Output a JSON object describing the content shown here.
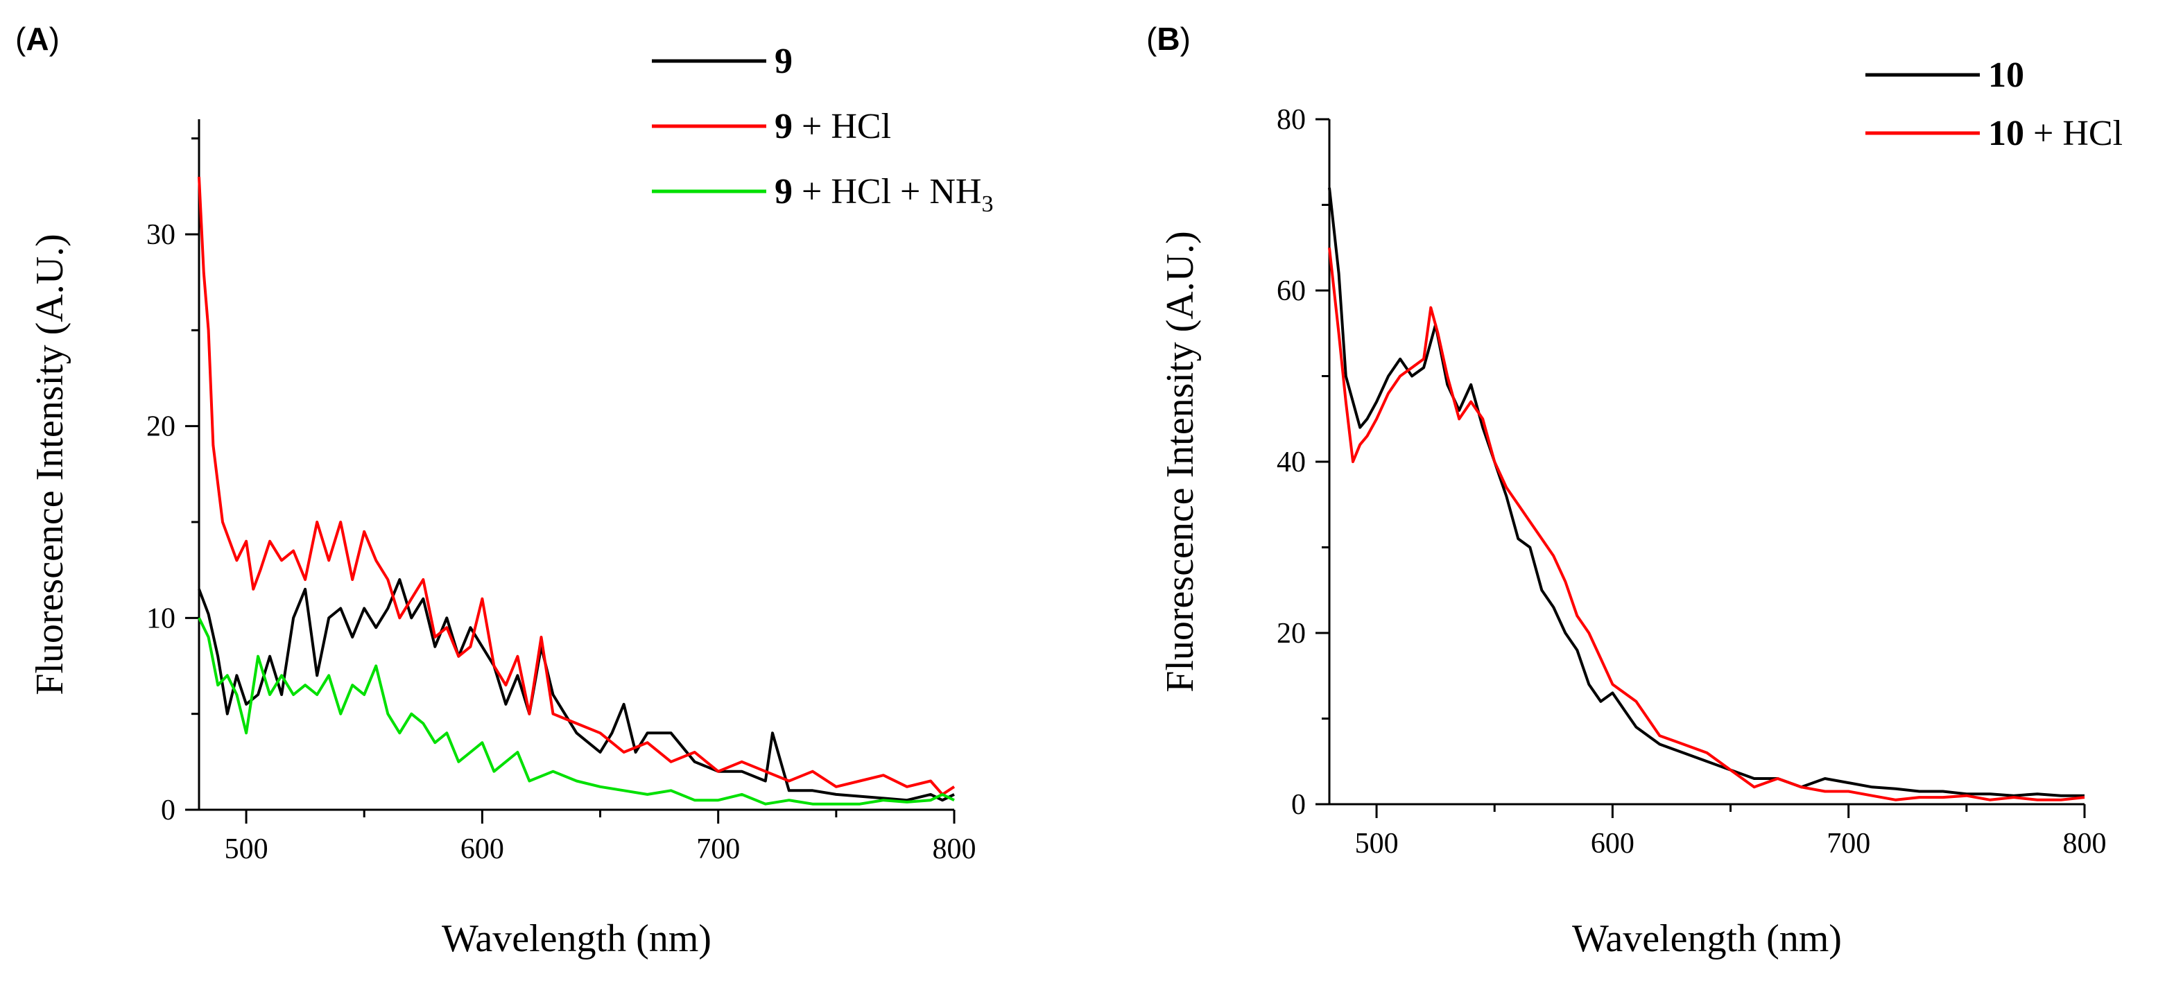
{
  "chart_data": [
    {
      "type": "line",
      "panel_label": "A",
      "xlabel": "Wavelength (nm)",
      "ylabel": "Fluorescence Intensity (A.U.)",
      "xlim": [
        480,
        800
      ],
      "ylim": [
        0,
        36
      ],
      "xticks": [
        500,
        600,
        700,
        800
      ],
      "yticks": [
        0,
        10,
        20,
        30
      ],
      "grid": false,
      "legend_position": "top-right",
      "series": [
        {
          "name": "9",
          "legend_label": {
            "bold": "9",
            "rest": ""
          },
          "color": "#000000",
          "x": [
            480,
            484,
            488,
            492,
            496,
            500,
            505,
            510,
            515,
            520,
            525,
            530,
            535,
            540,
            545,
            550,
            555,
            560,
            565,
            570,
            575,
            580,
            585,
            590,
            595,
            600,
            605,
            610,
            615,
            620,
            625,
            630,
            635,
            640,
            645,
            650,
            655,
            660,
            665,
            670,
            680,
            690,
            700,
            710,
            720,
            723,
            730,
            740,
            750,
            760,
            770,
            780,
            790,
            795,
            800
          ],
          "y": [
            11.5,
            10.2,
            8,
            5,
            7,
            5.5,
            6,
            8,
            6,
            10,
            11.5,
            7,
            10,
            10.5,
            9,
            10.5,
            9.5,
            10.5,
            12,
            10,
            11,
            8.5,
            10,
            8,
            9.5,
            8.5,
            7.5,
            5.5,
            7,
            5,
            8.5,
            6,
            5,
            4,
            3.5,
            3,
            4,
            5.5,
            3,
            4,
            4,
            2.5,
            2,
            2,
            1.5,
            4,
            1,
            1,
            0.8,
            0.7,
            0.6,
            0.5,
            0.8,
            0.5,
            0.8
          ]
        },
        {
          "name": "9 + HCl",
          "legend_label": {
            "bold": "9",
            "rest": " + HCl"
          },
          "color": "#ff0000",
          "x": [
            480,
            482,
            484,
            486,
            488,
            490,
            493,
            496,
            500,
            503,
            506,
            510,
            515,
            520,
            525,
            530,
            535,
            540,
            545,
            550,
            555,
            560,
            565,
            570,
            575,
            580,
            585,
            590,
            595,
            600,
            605,
            610,
            615,
            620,
            625,
            630,
            640,
            650,
            660,
            670,
            680,
            690,
            700,
            710,
            720,
            730,
            740,
            750,
            760,
            770,
            780,
            790,
            795,
            800
          ],
          "y": [
            33,
            28,
            25,
            19,
            17,
            15,
            14,
            13,
            14,
            11.5,
            12.5,
            14,
            13,
            13.5,
            12,
            15,
            13,
            15,
            12,
            14.5,
            13,
            12,
            10,
            11,
            12,
            9,
            9.5,
            8,
            8.5,
            11,
            7.5,
            6.5,
            8,
            5,
            9,
            5,
            4.5,
            4,
            3,
            3.5,
            2.5,
            3,
            2,
            2.5,
            2,
            1.5,
            2,
            1.2,
            1.5,
            1.8,
            1.2,
            1.5,
            0.8,
            1.2
          ]
        },
        {
          "name": "9 + HCl + NH3",
          "legend_label": {
            "bold": "9",
            "rest": " + HCl + NH",
            "sub": "3"
          },
          "color": "#00e000",
          "x": [
            480,
            484,
            488,
            492,
            496,
            500,
            505,
            510,
            515,
            520,
            525,
            530,
            535,
            540,
            545,
            550,
            555,
            560,
            565,
            570,
            575,
            580,
            585,
            590,
            595,
            600,
            605,
            610,
            615,
            620,
            630,
            640,
            650,
            660,
            670,
            680,
            690,
            700,
            710,
            720,
            730,
            740,
            750,
            760,
            770,
            780,
            790,
            795,
            800
          ],
          "y": [
            10,
            9,
            6.5,
            7,
            6,
            4,
            8,
            6,
            7,
            6,
            6.5,
            6,
            7,
            5,
            6.5,
            6,
            7.5,
            5,
            4,
            5,
            4.5,
            3.5,
            4,
            2.5,
            3,
            3.5,
            2,
            2.5,
            3,
            1.5,
            2,
            1.5,
            1.2,
            1,
            0.8,
            1,
            0.5,
            0.5,
            0.8,
            0.3,
            0.5,
            0.3,
            0.3,
            0.3,
            0.5,
            0.4,
            0.5,
            0.8,
            0.5
          ]
        }
      ]
    },
    {
      "type": "line",
      "panel_label": "B",
      "xlabel": "Wavelength (nm)",
      "ylabel": "Fluorescence Intensity (A.U.)",
      "xlim": [
        480,
        800
      ],
      "ylim": [
        0,
        80
      ],
      "xticks": [
        500,
        600,
        700,
        800
      ],
      "yticks": [
        0,
        20,
        40,
        60,
        80
      ],
      "grid": false,
      "legend_position": "top-right",
      "series": [
        {
          "name": "10",
          "legend_label": {
            "bold": "10",
            "rest": ""
          },
          "color": "#000000",
          "x": [
            480,
            482,
            484,
            487,
            490,
            493,
            496,
            500,
            505,
            510,
            515,
            520,
            525,
            530,
            535,
            540,
            545,
            550,
            555,
            560,
            565,
            570,
            575,
            580,
            585,
            590,
            595,
            600,
            605,
            610,
            620,
            630,
            640,
            650,
            660,
            670,
            680,
            690,
            700,
            710,
            720,
            730,
            740,
            750,
            760,
            770,
            780,
            790,
            800
          ],
          "y": [
            72,
            67,
            62,
            50,
            47,
            44,
            45,
            47,
            50,
            52,
            50,
            51,
            56,
            49,
            46,
            49,
            44,
            40,
            36,
            31,
            30,
            25,
            23,
            20,
            18,
            14,
            12,
            13,
            11,
            9,
            7,
            6,
            5,
            4,
            3,
            3,
            2,
            3,
            2.5,
            2,
            1.8,
            1.5,
            1.5,
            1.2,
            1.2,
            1,
            1.2,
            1,
            1
          ]
        },
        {
          "name": "10 + HCl",
          "legend_label": {
            "bold": "10",
            "rest": " + HCl"
          },
          "color": "#ff0000",
          "x": [
            480,
            482,
            484,
            487,
            490,
            493,
            496,
            500,
            505,
            510,
            515,
            520,
            523,
            526,
            530,
            535,
            540,
            545,
            550,
            555,
            560,
            565,
            570,
            575,
            580,
            585,
            590,
            595,
            600,
            610,
            620,
            630,
            640,
            650,
            660,
            670,
            680,
            690,
            700,
            710,
            720,
            730,
            740,
            750,
            760,
            770,
            780,
            790,
            800
          ],
          "y": [
            65,
            60,
            55,
            47,
            40,
            42,
            43,
            45,
            48,
            50,
            51,
            52,
            58,
            55,
            50,
            45,
            47,
            45,
            40,
            37,
            35,
            33,
            31,
            29,
            26,
            22,
            20,
            17,
            14,
            12,
            8,
            7,
            6,
            4,
            2,
            3,
            2,
            1.5,
            1.5,
            1,
            0.5,
            0.8,
            0.8,
            1,
            0.5,
            0.8,
            0.5,
            0.5,
            0.8
          ]
        }
      ]
    }
  ]
}
